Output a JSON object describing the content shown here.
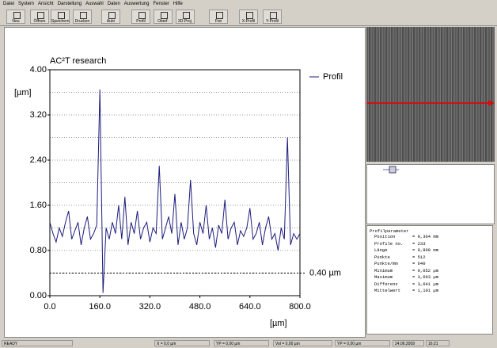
{
  "menu": [
    "Datei",
    "System",
    "Ansicht",
    "Darstellung",
    "Auswahl",
    "Daten",
    "Auswertung",
    "Fenster",
    "Hilfe"
  ],
  "toolbar": [
    "Neu",
    "Öffnen",
    "Speichern",
    "Drucken",
    "Auto",
    "Profil",
    "Oberf.",
    "3D-Proj.",
    "Frei",
    "X-Profil",
    "Y-Profil"
  ],
  "chart_data": {
    "type": "line",
    "title": "AC²T research",
    "y_label": "[µm]",
    "x_label": "[µm]",
    "x": [
      0,
      10,
      20,
      30,
      40,
      50,
      60,
      70,
      80,
      90,
      100,
      110,
      120,
      130,
      140,
      150,
      160,
      170,
      180,
      190,
      200,
      210,
      220,
      230,
      240,
      250,
      260,
      270,
      280,
      290,
      300,
      310,
      320,
      330,
      340,
      350,
      360,
      370,
      380,
      390,
      400,
      410,
      420,
      430,
      440,
      450,
      460,
      470,
      480,
      490,
      500,
      510,
      520,
      530,
      540,
      550,
      560,
      570,
      580,
      590,
      600,
      610,
      620,
      630,
      640,
      650,
      660,
      670,
      680,
      690,
      700,
      710,
      720,
      730,
      740,
      750,
      760,
      770,
      780,
      790,
      800
    ],
    "series": [
      {
        "name": "Profil",
        "color": "#1c1c7c",
        "values": [
          1.3,
          1.1,
          0.95,
          1.2,
          1.05,
          1.3,
          1.5,
          1.0,
          1.15,
          1.3,
          0.9,
          1.2,
          1.4,
          1.0,
          1.1,
          1.25,
          3.65,
          0.05,
          1.2,
          1.0,
          1.3,
          1.1,
          1.6,
          1.0,
          1.75,
          0.9,
          1.3,
          1.1,
          1.5,
          1.0,
          1.2,
          1.3,
          0.95,
          1.2,
          1.1,
          2.3,
          1.0,
          1.2,
          1.4,
          1.1,
          1.8,
          0.9,
          1.3,
          1.0,
          1.2,
          2.05,
          1.1,
          0.9,
          1.3,
          1.1,
          1.6,
          1.0,
          1.2,
          0.85,
          1.25,
          1.1,
          1.7,
          1.0,
          1.2,
          1.3,
          0.9,
          1.15,
          1.05,
          1.2,
          1.55,
          1.0,
          1.1,
          1.3,
          0.9,
          1.2,
          1.4,
          1.0,
          1.1,
          0.8,
          1.2,
          1.0,
          2.8,
          0.9,
          1.1,
          1.0,
          1.1
        ]
      }
    ],
    "xlim": [
      0,
      800
    ],
    "xticks": [
      {
        "value": 0,
        "label": "0.0"
      },
      {
        "value": 160,
        "label": "160.0"
      },
      {
        "value": 320,
        "label": "320.0"
      },
      {
        "value": 480,
        "label": "480.0"
      },
      {
        "value": 640,
        "label": "640.0"
      },
      {
        "value": 800,
        "label": "800.0"
      }
    ],
    "ylim": [
      0,
      4
    ],
    "yticks": [
      {
        "value": 0,
        "label": "0.00"
      },
      {
        "value": 0.8,
        "label": "0.80"
      },
      {
        "value": 1.6,
        "label": "1.60"
      },
      {
        "value": 2.4,
        "label": "2.40"
      },
      {
        "value": 3.2,
        "label": "3.20"
      },
      {
        "value": 4,
        "label": "4.00"
      }
    ],
    "y_gridlines": [
      0.4,
      0.8,
      1.2,
      1.6,
      2.0,
      2.4,
      2.8,
      3.2,
      3.6
    ],
    "annotations": [
      {
        "text": "0.40 µm",
        "y": 0.4
      }
    ]
  },
  "parameters": {
    "title": "Profilparameter",
    "rows": [
      [
        "Position",
        "= 0,364 mm"
      ],
      [
        "Profile no.",
        "= 233"
      ],
      [
        "Länge",
        "= 0,800 mm"
      ],
      [
        "Punkte",
        "= 512"
      ],
      [
        "Punkte/mm",
        "= 640"
      ],
      [
        "Minimum",
        "= 0,052 µm"
      ],
      [
        "Maximum",
        "= 3,693 µm"
      ],
      [
        "Differenz",
        "= 3,641 µm"
      ],
      [
        "Mittelwert",
        "= 1,101 µm"
      ]
    ]
  },
  "status": [
    "READY",
    "X = 0,0 µm",
    "YP = 0,00 µm",
    "Vol = 0,00 µm",
    "YP = 0,00 µm",
    "24.06.2009",
    "16:21"
  ]
}
